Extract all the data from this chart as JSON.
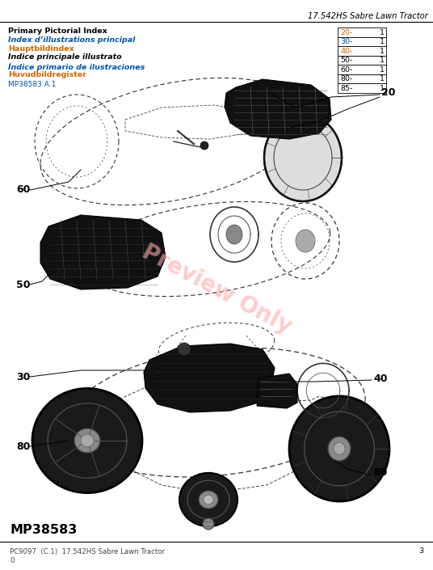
{
  "page_title": "17.542HS Sabre Lawn Tractor",
  "header_lines": [
    {
      "text": "Primary Pictorial Index",
      "color": "#000000",
      "bold": true,
      "italic": false
    },
    {
      "text": "Index d’illustrations principal",
      "color": "#0055aa",
      "bold": true,
      "italic": true
    },
    {
      "text": "Hauptbildindex",
      "color": "#cc6600",
      "bold": true,
      "italic": false
    },
    {
      "text": "Indice principale illustrato",
      "color": "#000000",
      "bold": true,
      "italic": true
    },
    {
      "text": "Índice primario de ilustraciones",
      "color": "#0055aa",
      "bold": true,
      "italic": true
    },
    {
      "text": "Huvudbildregister",
      "color": "#cc6600",
      "bold": true,
      "italic": false
    }
  ],
  "mp_code": "MP38583 A.1",
  "mp_code_color": "#0055aa",
  "table_rows": [
    {
      "label": "20-",
      "value": "1",
      "lcolor": "#cc6600"
    },
    {
      "label": "30-",
      "value": "1",
      "lcolor": "#0055aa"
    },
    {
      "label": "40-",
      "value": "1",
      "lcolor": "#cc6600"
    },
    {
      "label": "50-",
      "value": "1",
      "lcolor": "#000000"
    },
    {
      "label": "60-",
      "value": "1",
      "lcolor": "#000000"
    },
    {
      "label": "80-",
      "value": "1",
      "lcolor": "#000000"
    },
    {
      "label": "85-",
      "value": "1",
      "lcolor": "#000000"
    }
  ],
  "watermark_text": "Preview Only",
  "watermark_color": "#ffaaaa",
  "bottom_label": "MP38583",
  "footer_text": "PC9097  (C.1)  17.542HS Sabre Lawn Tractor",
  "footer_page": "3",
  "footer_sub": "0",
  "bg_color": "#ffffff",
  "top_line_color": "#000000",
  "diagram_color": "#222222",
  "dark_fill": "#111111",
  "mid_fill": "#333333",
  "light_fill": "#888888"
}
